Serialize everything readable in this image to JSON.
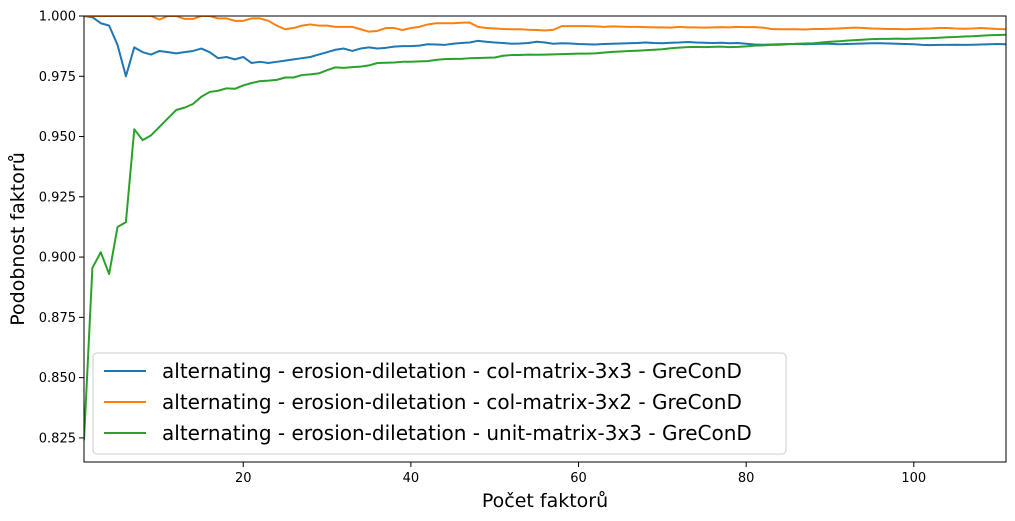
{
  "chart_data": {
    "type": "line",
    "title": "",
    "xlabel": "Počet faktorů",
    "ylabel": "Podobnost faktorů",
    "xlim": [
      1,
      111
    ],
    "ylim": [
      0.815,
      1.0
    ],
    "xticks": [
      20,
      40,
      60,
      80,
      100
    ],
    "yticks": [
      0.825,
      0.85,
      0.875,
      0.9,
      0.925,
      0.95,
      0.975,
      1.0
    ],
    "ytick_labels": [
      "0.825",
      "0.850",
      "0.875",
      "0.900",
      "0.925",
      "0.950",
      "0.975",
      "1.000"
    ],
    "grid": false,
    "legend_position": "bottom-left",
    "series": [
      {
        "name": "alternating - erosion-diletation - col-matrix-3x3 - GreConD",
        "color": "#1f77b4",
        "x": [
          1,
          2,
          3,
          4,
          5,
          6,
          7,
          8,
          9,
          10,
          11,
          12,
          13,
          14,
          15,
          16,
          17,
          18,
          19,
          20,
          21,
          22,
          23,
          24,
          25,
          26,
          27,
          28,
          29,
          30,
          31,
          32,
          33,
          34,
          35,
          36,
          37,
          38,
          39,
          40,
          41,
          42,
          43,
          44,
          45,
          46,
          47,
          48,
          49,
          50,
          51,
          52,
          53,
          54,
          55,
          56,
          57,
          58,
          59,
          60,
          61,
          62,
          63,
          64,
          65,
          66,
          67,
          68,
          69,
          70,
          71,
          72,
          73,
          74,
          75,
          76,
          77,
          78,
          79,
          80,
          81,
          82,
          83,
          84,
          85,
          86,
          87,
          88,
          89,
          90,
          91,
          92,
          93,
          94,
          95,
          96,
          97,
          98,
          99,
          100,
          101,
          102,
          103,
          104,
          105,
          106,
          107,
          108,
          109,
          110,
          111
        ],
        "y": [
          1.0,
          0.9995,
          0.997,
          0.996,
          0.988,
          0.975,
          0.987,
          0.985,
          0.984,
          0.9855,
          0.985,
          0.9845,
          0.985,
          0.9855,
          0.9865,
          0.985,
          0.9825,
          0.983,
          0.982,
          0.983,
          0.9805,
          0.981,
          0.9805,
          0.981,
          0.9815,
          0.982,
          0.9825,
          0.983,
          0.984,
          0.985,
          0.986,
          0.9865,
          0.9855,
          0.9865,
          0.987,
          0.9865,
          0.9868,
          0.9873,
          0.9875,
          0.9875,
          0.9877,
          0.9883,
          0.9882,
          0.988,
          0.9885,
          0.9888,
          0.989,
          0.9897,
          0.9893,
          0.989,
          0.9888,
          0.9885,
          0.9886,
          0.9888,
          0.9893,
          0.989,
          0.9885,
          0.9887,
          0.9886,
          0.9884,
          0.9883,
          0.9882,
          0.9884,
          0.9885,
          0.9886,
          0.9887,
          0.9888,
          0.989,
          0.9888,
          0.9887,
          0.9889,
          0.989,
          0.9892,
          0.989,
          0.9889,
          0.9888,
          0.9889,
          0.9887,
          0.9888,
          0.9885,
          0.9882,
          0.9881,
          0.9882,
          0.9883,
          0.9884,
          0.9884,
          0.9883,
          0.9884,
          0.9885,
          0.9885,
          0.9883,
          0.9884,
          0.9885,
          0.9886,
          0.9887,
          0.9887,
          0.9886,
          0.9885,
          0.9884,
          0.9883,
          0.988,
          0.9879,
          0.988,
          0.988,
          0.9881,
          0.988,
          0.9881,
          0.9882,
          0.9883,
          0.9884,
          0.9883
        ]
      },
      {
        "name": "alternating - erosion-diletation - col-matrix-3x2 - GreConD",
        "color": "#ff7f0e",
        "x": [
          1,
          2,
          3,
          4,
          5,
          6,
          7,
          8,
          9,
          10,
          11,
          12,
          13,
          14,
          15,
          16,
          17,
          18,
          19,
          20,
          21,
          22,
          23,
          24,
          25,
          26,
          27,
          28,
          29,
          30,
          31,
          32,
          33,
          34,
          35,
          36,
          37,
          38,
          39,
          40,
          41,
          42,
          43,
          44,
          45,
          46,
          47,
          48,
          49,
          50,
          51,
          52,
          53,
          54,
          55,
          56,
          57,
          58,
          59,
          60,
          61,
          62,
          63,
          64,
          65,
          66,
          67,
          68,
          69,
          70,
          71,
          72,
          73,
          74,
          75,
          76,
          77,
          78,
          79,
          80,
          81,
          82,
          83,
          84,
          85,
          86,
          87,
          88,
          89,
          90,
          91,
          92,
          93,
          94,
          95,
          96,
          97,
          98,
          99,
          100,
          101,
          102,
          103,
          104,
          105,
          106,
          107,
          108,
          109,
          110,
          111
        ],
        "y": [
          1.0,
          1.0,
          1.0,
          1.0,
          1.0,
          1.0,
          1.0,
          1.0,
          1.0,
          0.9985,
          1.0,
          1.0,
          0.9988,
          0.9988,
          1.0,
          1.0,
          0.999,
          0.999,
          0.998,
          0.998,
          0.999,
          0.999,
          0.998,
          0.996,
          0.9945,
          0.995,
          0.996,
          0.9965,
          0.996,
          0.996,
          0.9955,
          0.9955,
          0.9955,
          0.9945,
          0.9935,
          0.9938,
          0.995,
          0.995,
          0.9942,
          0.995,
          0.9955,
          0.9965,
          0.997,
          0.997,
          0.997,
          0.9972,
          0.9973,
          0.9955,
          0.995,
          0.9948,
          0.9946,
          0.9945,
          0.9945,
          0.9943,
          0.9942,
          0.994,
          0.9943,
          0.9958,
          0.9958,
          0.9958,
          0.9958,
          0.9957,
          0.9955,
          0.9957,
          0.9956,
          0.9955,
          0.9955,
          0.9954,
          0.9953,
          0.9953,
          0.9952,
          0.9955,
          0.9953,
          0.9953,
          0.9952,
          0.9953,
          0.9954,
          0.9953,
          0.9955,
          0.9954,
          0.9954,
          0.9952,
          0.9946,
          0.9945,
          0.9945,
          0.9945,
          0.9944,
          0.9946,
          0.9946,
          0.9947,
          0.9948,
          0.995,
          0.9952,
          0.995,
          0.9948,
          0.9947,
          0.9946,
          0.9946,
          0.9945,
          0.9946,
          0.9947,
          0.9948,
          0.995,
          0.995,
          0.9948,
          0.9947,
          0.9948,
          0.995,
          0.9948,
          0.9946,
          0.9945
        ]
      },
      {
        "name": "alternating - erosion-diletation - unit-matrix-3x3 - GreConD",
        "color": "#2ca02c",
        "x": [
          1,
          2,
          3,
          4,
          5,
          6,
          7,
          8,
          9,
          10,
          11,
          12,
          13,
          14,
          15,
          16,
          17,
          18,
          19,
          20,
          21,
          22,
          23,
          24,
          25,
          26,
          27,
          28,
          29,
          30,
          31,
          32,
          33,
          34,
          35,
          36,
          37,
          38,
          39,
          40,
          41,
          42,
          43,
          44,
          45,
          46,
          47,
          48,
          49,
          50,
          51,
          52,
          53,
          54,
          55,
          56,
          57,
          58,
          59,
          60,
          61,
          62,
          63,
          64,
          65,
          66,
          67,
          68,
          69,
          70,
          71,
          72,
          73,
          74,
          75,
          76,
          77,
          78,
          79,
          80,
          81,
          82,
          83,
          84,
          85,
          86,
          87,
          88,
          89,
          90,
          91,
          92,
          93,
          94,
          95,
          96,
          97,
          98,
          99,
          100,
          101,
          102,
          103,
          104,
          105,
          106,
          107,
          108,
          109,
          110,
          111
        ],
        "y": [
          0.824,
          0.8955,
          0.902,
          0.893,
          0.9125,
          0.9145,
          0.953,
          0.9485,
          0.9505,
          0.954,
          0.9575,
          0.961,
          0.962,
          0.9635,
          0.9665,
          0.9685,
          0.969,
          0.97,
          0.9698,
          0.9712,
          0.9722,
          0.973,
          0.9732,
          0.9735,
          0.9745,
          0.9745,
          0.9755,
          0.9758,
          0.9762,
          0.9775,
          0.9787,
          0.9785,
          0.9788,
          0.979,
          0.9795,
          0.9805,
          0.9806,
          0.9807,
          0.981,
          0.981,
          0.9812,
          0.9813,
          0.9818,
          0.9821,
          0.9822,
          0.9822,
          0.9825,
          0.9826,
          0.9827,
          0.9828,
          0.9835,
          0.9838,
          0.9838,
          0.984,
          0.9839,
          0.984,
          0.9841,
          0.9842,
          0.9843,
          0.9844,
          0.9844,
          0.9845,
          0.9848,
          0.9851,
          0.9853,
          0.9855,
          0.9856,
          0.9858,
          0.986,
          0.9862,
          0.9866,
          0.9869,
          0.9871,
          0.9872,
          0.9871,
          0.9872,
          0.9873,
          0.9871,
          0.9872,
          0.9874,
          0.9877,
          0.9878,
          0.988,
          0.9881,
          0.9883,
          0.9885,
          0.9886,
          0.9887,
          0.989,
          0.9893,
          0.9895,
          0.9898,
          0.99,
          0.9902,
          0.9904,
          0.9905,
          0.9905,
          0.9906,
          0.9905,
          0.9906,
          0.9907,
          0.9908,
          0.991,
          0.9912,
          0.9913,
          0.9915,
          0.9916,
          0.9918,
          0.992,
          0.9921,
          0.9922
        ]
      }
    ]
  }
}
